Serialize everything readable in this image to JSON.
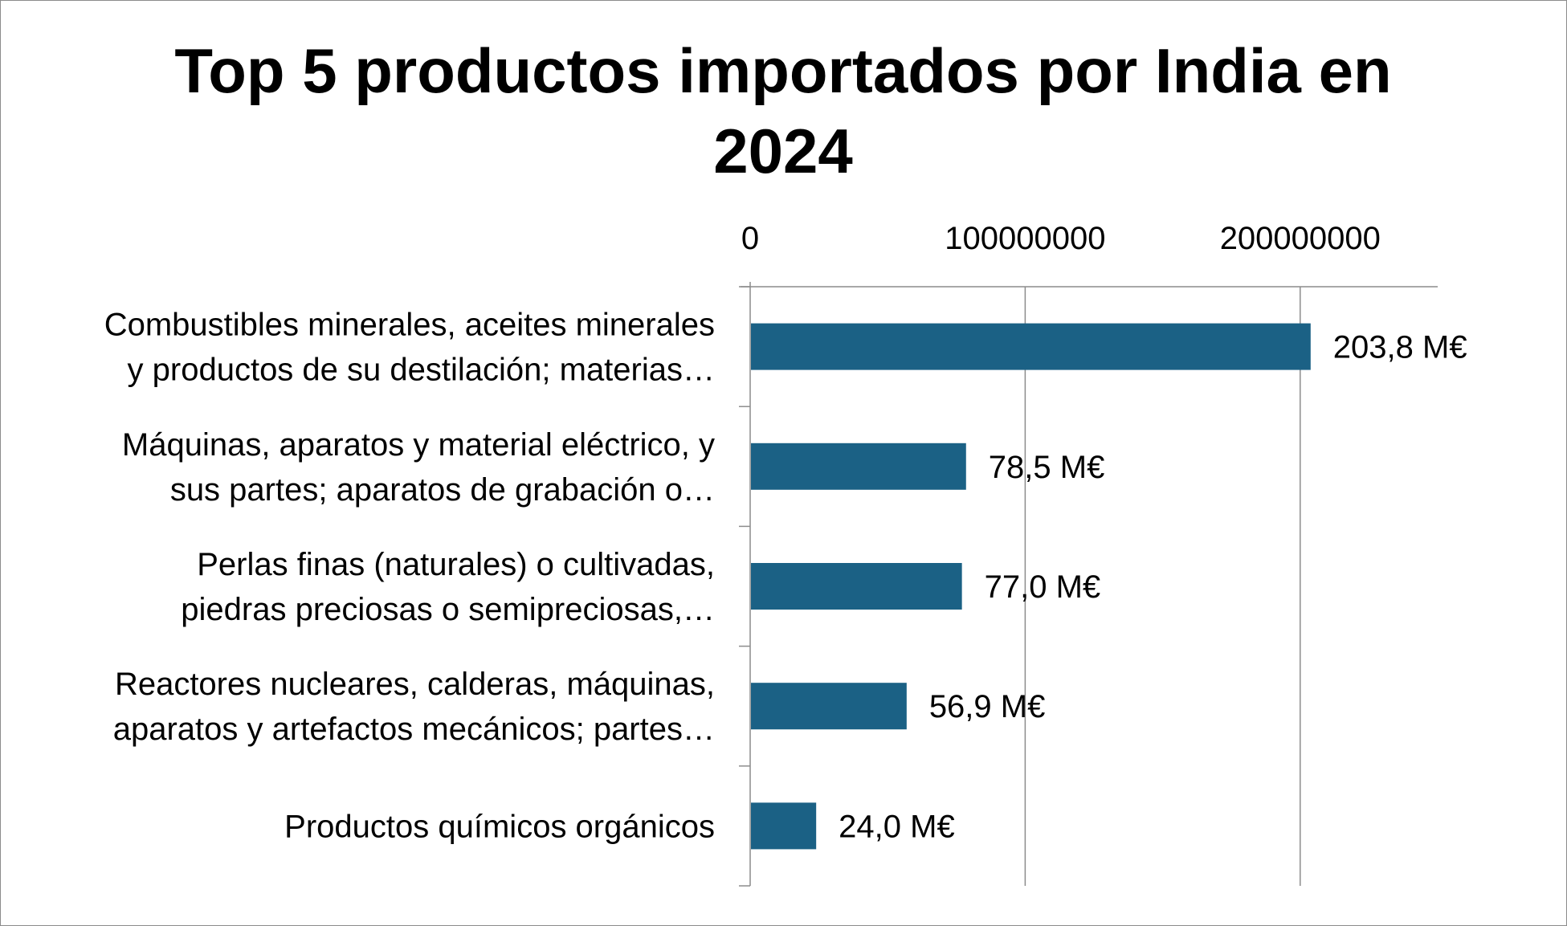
{
  "chart_data": {
    "type": "bar",
    "orientation": "horizontal",
    "title": "Top 5 productos importados por India en 2024",
    "xlim": [
      0,
      250000000
    ],
    "x_ticks": [
      0,
      100000000,
      200000000
    ],
    "x_tick_labels": [
      "0",
      "100000000",
      "200000000"
    ],
    "x_axis_position": "top",
    "grid": true,
    "legend": "none",
    "bar_color": "#1b6185",
    "categories": [
      [
        "Combustibles minerales, aceites minerales",
        "y productos de su destilación; materias…"
      ],
      [
        "Máquinas, aparatos y material eléctrico, y",
        "sus partes; aparatos de grabación o…"
      ],
      [
        "Perlas finas (naturales) o cultivadas,",
        "piedras preciosas o semipreciosas,…"
      ],
      [
        "Reactores nucleares, calderas, máquinas,",
        "aparatos y artefactos mecánicos; partes…"
      ],
      [
        "Productos químicos orgánicos"
      ]
    ],
    "values": [
      203800000,
      78500000,
      77000000,
      56900000,
      24000000
    ],
    "data_labels": [
      "203,8 M€",
      "78,5 M€",
      "77,0 M€",
      "56,9 M€",
      "24,0 M€"
    ]
  }
}
